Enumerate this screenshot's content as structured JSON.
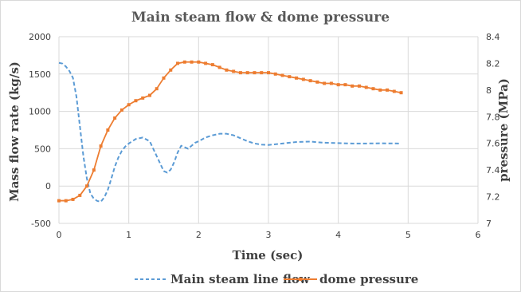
{
  "chart_data": {
    "type": "line",
    "title": "Main steam flow & dome pressure",
    "xlabel": "Time (sec)",
    "ylabel": "Mass flow rate (kg/s)",
    "y2label": "pressure (MPa)",
    "xlim": [
      0,
      6
    ],
    "ylim": [
      -500,
      2000
    ],
    "y2lim": [
      7,
      8.4
    ],
    "x_ticks": [
      "0",
      "1",
      "2",
      "3",
      "4",
      "5",
      "6"
    ],
    "y_ticks": [
      "-500",
      "0",
      "500",
      "1000",
      "1500",
      "2000"
    ],
    "y2_ticks": [
      "7",
      "7.2",
      "7.4",
      "7.6",
      "7.8",
      "8",
      "8.2",
      "8.4"
    ],
    "grid": "horizontal",
    "legend_position": "bottom",
    "colors": {
      "flow": "#5b9bd5",
      "pressure": "#ed7d31"
    },
    "series": [
      {
        "name": "Main steam line flow",
        "axis": "left",
        "style": "dashed",
        "x": [
          0,
          0.05,
          0.1,
          0.15,
          0.2,
          0.25,
          0.3,
          0.35,
          0.4,
          0.45,
          0.5,
          0.55,
          0.6,
          0.65,
          0.7,
          0.75,
          0.8,
          0.85,
          0.9,
          0.95,
          1.0,
          1.1,
          1.2,
          1.3,
          1.4,
          1.5,
          1.55,
          1.6,
          1.65,
          1.7,
          1.75,
          1.8,
          1.85,
          1.9,
          1.95,
          2.0,
          2.1,
          2.2,
          2.3,
          2.4,
          2.5,
          2.6,
          2.7,
          2.8,
          2.9,
          3.0,
          3.2,
          3.4,
          3.6,
          3.8,
          4.0,
          4.2,
          4.4,
          4.6,
          4.9
        ],
        "y": [
          1650,
          1640,
          1600,
          1540,
          1450,
          1200,
          800,
          400,
          100,
          -100,
          -170,
          -200,
          -210,
          -150,
          -50,
          100,
          260,
          380,
          470,
          530,
          570,
          630,
          650,
          600,
          400,
          200,
          180,
          220,
          320,
          450,
          540,
          520,
          500,
          540,
          580,
          600,
          650,
          680,
          700,
          700,
          680,
          640,
          600,
          570,
          555,
          550,
          570,
          590,
          595,
          580,
          575,
          570,
          570,
          572,
          570
        ]
      },
      {
        "name": "dome pressure",
        "axis": "right",
        "style": "solid-marker",
        "x": [
          0,
          0.1,
          0.2,
          0.3,
          0.4,
          0.5,
          0.6,
          0.7,
          0.8,
          0.9,
          1.0,
          1.1,
          1.2,
          1.3,
          1.4,
          1.5,
          1.6,
          1.7,
          1.8,
          1.9,
          2.0,
          2.1,
          2.2,
          2.3,
          2.4,
          2.5,
          2.6,
          2.7,
          2.8,
          2.9,
          3.0,
          3.1,
          3.2,
          3.3,
          3.4,
          3.5,
          3.6,
          3.7,
          3.8,
          3.9,
          4.0,
          4.1,
          4.2,
          4.3,
          4.4,
          4.5,
          4.6,
          4.7,
          4.8,
          4.9
        ],
        "y": [
          7.17,
          7.17,
          7.18,
          7.21,
          7.28,
          7.4,
          7.58,
          7.7,
          7.79,
          7.85,
          7.89,
          7.92,
          7.94,
          7.96,
          8.01,
          8.09,
          8.15,
          8.2,
          8.21,
          8.21,
          8.21,
          8.2,
          8.19,
          8.17,
          8.15,
          8.14,
          8.13,
          8.13,
          8.13,
          8.13,
          8.13,
          8.12,
          8.11,
          8.1,
          8.09,
          8.08,
          8.07,
          8.06,
          8.05,
          8.05,
          8.04,
          8.04,
          8.03,
          8.03,
          8.02,
          8.01,
          8.0,
          8.0,
          7.99,
          7.98
        ]
      }
    ]
  }
}
